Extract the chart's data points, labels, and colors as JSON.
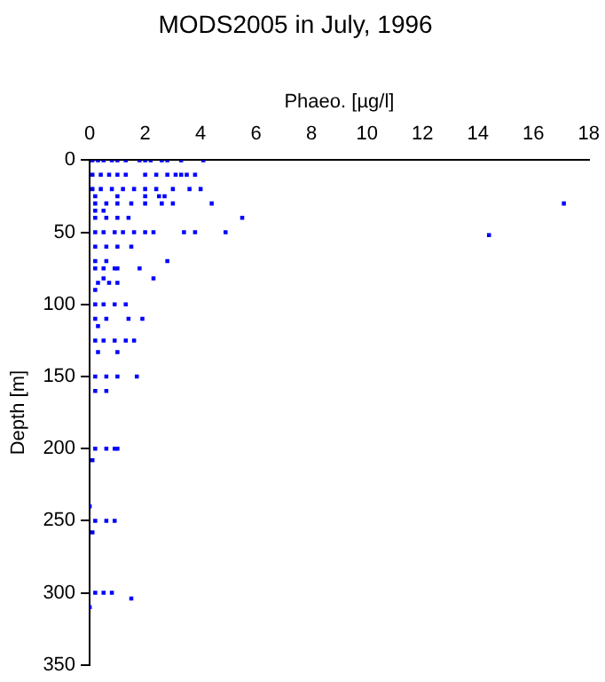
{
  "chart_data": {
    "type": "scatter",
    "title": "MODS2005 in July, 1996",
    "xlabel": "Phaeo. [µg/l]",
    "ylabel": "Depth [m]",
    "x": [
      0.1,
      0.3,
      0.5,
      0.8,
      1.0,
      1.3,
      1.8,
      2.0,
      2.2,
      2.6,
      2.8,
      3.3,
      4.1,
      0.1,
      0.4,
      0.7,
      1.0,
      1.3,
      2.0,
      2.4,
      2.8,
      3.1,
      3.3,
      3.5,
      3.8,
      0.1,
      0.4,
      0.8,
      1.2,
      1.6,
      2.0,
      2.4,
      3.0,
      3.6,
      4.0,
      0.2,
      1.0,
      2.0,
      2.5,
      2.7,
      0.2,
      0.6,
      1.0,
      1.5,
      2.0,
      2.6,
      3.0,
      4.4,
      17.1,
      0.2,
      0.5,
      0.2,
      0.6,
      1.0,
      1.4,
      5.5,
      0.2,
      0.5,
      0.9,
      1.2,
      1.6,
      2.0,
      2.3,
      3.4,
      3.8,
      4.9,
      14.4,
      0.2,
      0.6,
      1.0,
      1.5,
      0.2,
      0.6,
      2.8,
      0.2,
      0.5,
      0.9,
      1.0,
      1.8,
      2.3,
      0.5,
      0.3,
      0.7,
      1.0,
      0.2,
      0.2,
      0.5,
      0.9,
      1.3,
      0.2,
      0.6,
      1.4,
      1.9,
      0.3,
      0.2,
      0.5,
      0.9,
      1.3,
      1.6,
      0.3,
      1.0,
      0.2,
      0.6,
      1.0,
      1.7,
      0.2,
      0.6,
      0.2,
      0.6,
      0.9,
      1.0,
      0.1,
      0.0,
      0.2,
      0.6,
      0.9,
      0.1,
      0.2,
      0.5,
      0.8,
      1.5,
      0.0
    ],
    "values": [
      0,
      0,
      0,
      0,
      0,
      0,
      0,
      0,
      0,
      0,
      0,
      0,
      0,
      10,
      10,
      10,
      10,
      10,
      10,
      10,
      10,
      10,
      10,
      10,
      10,
      20,
      20,
      20,
      20,
      20,
      20,
      20,
      20,
      20,
      20,
      25,
      25,
      25,
      25,
      25,
      30,
      30,
      30,
      30,
      30,
      30,
      30,
      30,
      30,
      35,
      35,
      40,
      40,
      40,
      40,
      40,
      50,
      50,
      50,
      50,
      50,
      50,
      50,
      50,
      50,
      50,
      52,
      60,
      60,
      60,
      60,
      70,
      70,
      70,
      75,
      75,
      75,
      75,
      75,
      82,
      82,
      85,
      85,
      85,
      90,
      100,
      100,
      100,
      100,
      110,
      110,
      110,
      110,
      115,
      125,
      125,
      125,
      125,
      125,
      133,
      133,
      150,
      150,
      150,
      150,
      160,
      160,
      200,
      200,
      200,
      200,
      208,
      240,
      250,
      250,
      250,
      258,
      300,
      300,
      300,
      304,
      310
    ],
    "color": "#0000ff",
    "marker": "square",
    "xlim": [
      0,
      18
    ],
    "xticks": [
      0,
      2,
      4,
      6,
      8,
      10,
      12,
      14,
      16,
      18
    ],
    "ylim": [
      350,
      0
    ],
    "yticks": [
      0,
      50,
      100,
      150,
      200,
      250,
      300,
      350
    ]
  }
}
